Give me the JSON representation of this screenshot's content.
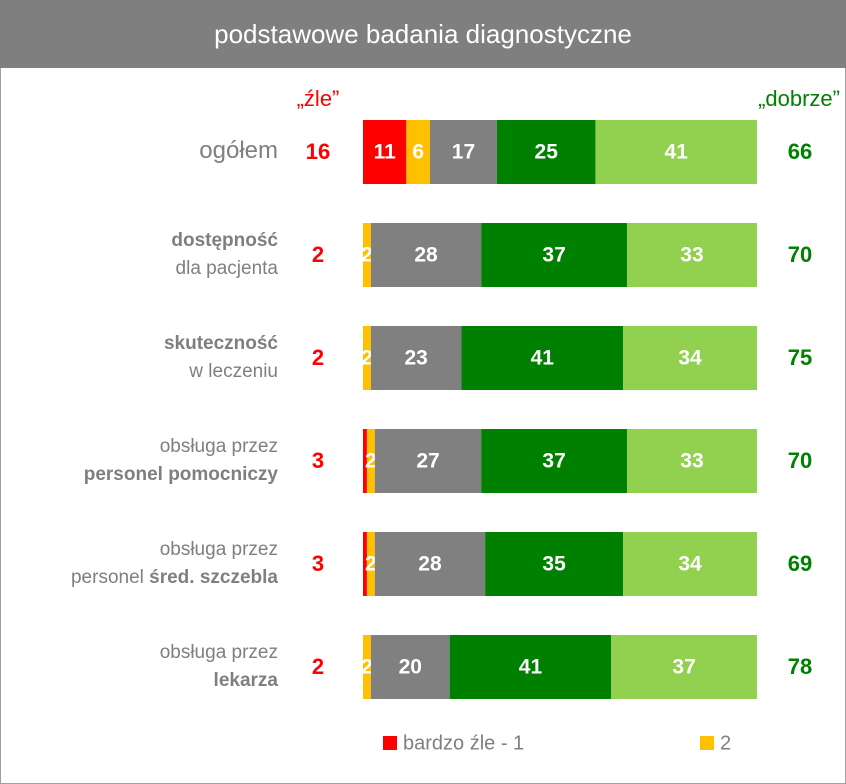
{
  "chart_data": {
    "type": "stacked-bar-horizontal",
    "title": "podstawowe badania diagnostyczne",
    "categories": [
      [
        [
          {
            "text": "ogółem"
          }
        ]
      ],
      [
        [
          {
            "text": "dostępność",
            "bold": true
          }
        ],
        [
          {
            "text": "dla pacjenta"
          }
        ]
      ],
      [
        [
          {
            "text": "skuteczność",
            "bold": true
          }
        ],
        [
          {
            "text": "w leczeniu"
          }
        ]
      ],
      [
        [
          {
            "text": "obsługa przez"
          }
        ],
        [
          {
            "text": "personel pomocniczy",
            "bold": true
          }
        ]
      ],
      [
        [
          {
            "text": "obsługa przez"
          }
        ],
        [
          {
            "text": "personel "
          },
          {
            "text": "śred. szczebla",
            "bold": true
          }
        ]
      ],
      [
        [
          {
            "text": "obsługa przez"
          }
        ],
        [
          {
            "text": "lekarza",
            "bold": true
          }
        ]
      ]
    ],
    "series": [
      {
        "name": "bardzo źle - 1",
        "color": "#ff0000",
        "values": [
          11,
          0,
          0,
          1,
          1,
          0
        ],
        "value_labels": [
          "11",
          null,
          null,
          null,
          null,
          null
        ]
      },
      {
        "name": "2",
        "color": "#ffc000",
        "values": [
          6,
          2,
          2,
          2,
          2,
          2
        ],
        "value_labels": [
          "6",
          "2",
          "2",
          "2",
          "2",
          "2"
        ]
      },
      {
        "color": "#808080",
        "values": [
          17,
          28,
          23,
          27,
          28,
          20
        ]
      },
      {
        "color": "#008000",
        "values": [
          25,
          37,
          41,
          37,
          35,
          41
        ]
      },
      {
        "color": "#92d050",
        "values": [
          41,
          33,
          34,
          33,
          34,
          37
        ]
      }
    ],
    "xlim": [
      0,
      100
    ],
    "bad_totals": {
      "label": "„źle”",
      "color": "#ff0000",
      "values": [
        16,
        2,
        2,
        3,
        3,
        2
      ]
    },
    "good_totals": {
      "label": "„dobrze”",
      "color": "#008000",
      "values": [
        66,
        70,
        75,
        70,
        69,
        78
      ]
    }
  }
}
